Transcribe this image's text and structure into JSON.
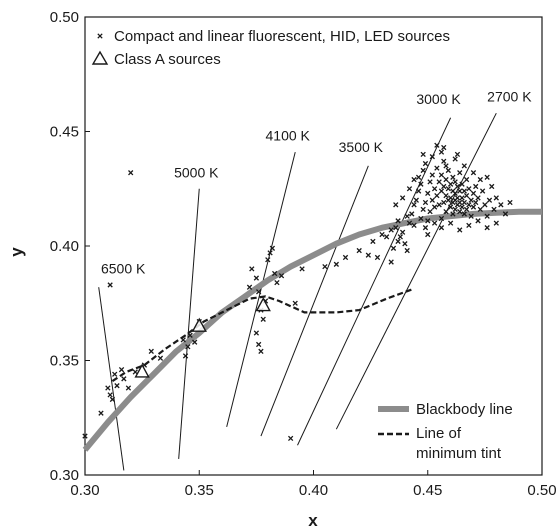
{
  "chart_data": {
    "type": "scatter",
    "title": "",
    "xlabel": "x",
    "ylabel": "y",
    "xlim": [
      0.3,
      0.5
    ],
    "ylim": [
      0.3,
      0.5
    ],
    "x_ticks": [
      "0.30",
      "0.35",
      "0.40",
      "0.45",
      "0.50"
    ],
    "y_ticks": [
      "0.30",
      "0.35",
      "0.40",
      "0.45",
      "0.50"
    ],
    "x_tick_values": [
      0.3,
      0.35,
      0.4,
      0.45,
      0.5
    ],
    "y_tick_values": [
      0.3,
      0.35,
      0.4,
      0.45,
      0.5
    ],
    "grid": false,
    "legend_top": [
      {
        "marker": "x",
        "label": "Compact and linear fluorescent, HID, LED sources"
      },
      {
        "marker": "triangle",
        "label": "Class A sources"
      }
    ],
    "legend_bottom": [
      {
        "style": "solid-thick-gray",
        "label": "Blackbody line"
      },
      {
        "style": "dashed-black",
        "label": "Line of minimum tint",
        "label_lines": [
          "Line of",
          "minimum tint"
        ]
      }
    ],
    "colors": {
      "blackbody": "#8c8c8c",
      "ink": "#1a1a1a"
    },
    "blackbody": [
      [
        0.3,
        0.311
      ],
      [
        0.31,
        0.323
      ],
      [
        0.32,
        0.334
      ],
      [
        0.33,
        0.344
      ],
      [
        0.34,
        0.354
      ],
      [
        0.35,
        0.362
      ],
      [
        0.36,
        0.371
      ],
      [
        0.37,
        0.378
      ],
      [
        0.38,
        0.385
      ],
      [
        0.39,
        0.391
      ],
      [
        0.4,
        0.396
      ],
      [
        0.41,
        0.401
      ],
      [
        0.42,
        0.405
      ],
      [
        0.43,
        0.408
      ],
      [
        0.44,
        0.41
      ],
      [
        0.45,
        0.412
      ],
      [
        0.46,
        0.413
      ],
      [
        0.47,
        0.414
      ],
      [
        0.48,
        0.4145
      ],
      [
        0.49,
        0.415
      ],
      [
        0.5,
        0.415
      ]
    ],
    "min_tint": [
      [
        0.312,
        0.341
      ],
      [
        0.318,
        0.345
      ],
      [
        0.326,
        0.348
      ],
      [
        0.335,
        0.355
      ],
      [
        0.344,
        0.361
      ],
      [
        0.352,
        0.367
      ],
      [
        0.362,
        0.372
      ],
      [
        0.372,
        0.377
      ],
      [
        0.379,
        0.378
      ],
      [
        0.385,
        0.376
      ],
      [
        0.396,
        0.371
      ],
      [
        0.41,
        0.371
      ],
      [
        0.42,
        0.372
      ],
      [
        0.432,
        0.377
      ],
      [
        0.443,
        0.381
      ]
    ],
    "cct_lines": [
      {
        "label": "6500 K",
        "from": [
          0.317,
          0.302
        ],
        "to": [
          0.306,
          0.382
        ],
        "label_at": [
          0.307,
          0.388
        ]
      },
      {
        "label": "5000 K",
        "from": [
          0.341,
          0.307
        ],
        "to": [
          0.35,
          0.425
        ],
        "label_at": [
          0.339,
          0.43
        ]
      },
      {
        "label": "4100 K",
        "from": [
          0.362,
          0.321
        ],
        "to": [
          0.392,
          0.441
        ],
        "label_at": [
          0.379,
          0.446
        ]
      },
      {
        "label": "3500 K",
        "from": [
          0.377,
          0.317
        ],
        "to": [
          0.424,
          0.435
        ],
        "label_at": [
          0.411,
          0.441
        ]
      },
      {
        "label": "3000 K",
        "from": [
          0.393,
          0.313
        ],
        "to": [
          0.46,
          0.456
        ],
        "label_at": [
          0.445,
          0.462
        ]
      },
      {
        "label": "2700 K",
        "from": [
          0.41,
          0.32
        ],
        "to": [
          0.48,
          0.458
        ],
        "label_at": [
          0.476,
          0.463
        ]
      }
    ],
    "class_a": [
      [
        0.325,
        0.345
      ],
      [
        0.35,
        0.365
      ],
      [
        0.378,
        0.374
      ]
    ],
    "sources": [
      [
        0.32,
        0.432
      ],
      [
        0.311,
        0.383
      ],
      [
        0.307,
        0.327
      ],
      [
        0.3,
        0.317
      ],
      [
        0.31,
        0.338
      ],
      [
        0.311,
        0.335
      ],
      [
        0.312,
        0.333
      ],
      [
        0.313,
        0.344
      ],
      [
        0.314,
        0.339
      ],
      [
        0.316,
        0.346
      ],
      [
        0.317,
        0.342
      ],
      [
        0.319,
        0.338
      ],
      [
        0.322,
        0.345
      ],
      [
        0.326,
        0.348
      ],
      [
        0.329,
        0.354
      ],
      [
        0.333,
        0.351
      ],
      [
        0.343,
        0.359
      ],
      [
        0.344,
        0.352
      ],
      [
        0.345,
        0.356
      ],
      [
        0.346,
        0.361
      ],
      [
        0.348,
        0.358
      ],
      [
        0.35,
        0.367
      ],
      [
        0.372,
        0.382
      ],
      [
        0.373,
        0.39
      ],
      [
        0.375,
        0.386
      ],
      [
        0.376,
        0.38
      ],
      [
        0.377,
        0.372
      ],
      [
        0.378,
        0.368
      ],
      [
        0.379,
        0.376
      ],
      [
        0.38,
        0.394
      ],
      [
        0.381,
        0.397
      ],
      [
        0.382,
        0.399
      ],
      [
        0.383,
        0.388
      ],
      [
        0.384,
        0.384
      ],
      [
        0.386,
        0.387
      ],
      [
        0.375,
        0.362
      ],
      [
        0.376,
        0.357
      ],
      [
        0.377,
        0.354
      ],
      [
        0.39,
        0.316
      ],
      [
        0.392,
        0.375
      ],
      [
        0.395,
        0.39
      ],
      [
        0.405,
        0.391
      ],
      [
        0.41,
        0.392
      ],
      [
        0.414,
        0.395
      ],
      [
        0.42,
        0.398
      ],
      [
        0.424,
        0.396
      ],
      [
        0.426,
        0.402
      ],
      [
        0.43,
        0.405
      ],
      [
        0.432,
        0.404
      ],
      [
        0.434,
        0.407
      ],
      [
        0.436,
        0.408
      ],
      [
        0.437,
        0.402
      ],
      [
        0.438,
        0.404
      ],
      [
        0.439,
        0.406
      ],
      [
        0.44,
        0.401
      ],
      [
        0.441,
        0.398
      ],
      [
        0.442,
        0.41
      ],
      [
        0.443,
        0.414
      ],
      [
        0.444,
        0.418
      ],
      [
        0.445,
        0.42
      ],
      [
        0.446,
        0.424
      ],
      [
        0.446,
        0.43
      ],
      [
        0.447,
        0.412
      ],
      [
        0.447,
        0.427
      ],
      [
        0.448,
        0.416
      ],
      [
        0.448,
        0.433
      ],
      [
        0.449,
        0.419
      ],
      [
        0.449,
        0.436
      ],
      [
        0.45,
        0.423
      ],
      [
        0.45,
        0.411
      ],
      [
        0.451,
        0.428
      ],
      [
        0.451,
        0.415
      ],
      [
        0.452,
        0.42
      ],
      [
        0.452,
        0.431
      ],
      [
        0.453,
        0.417
      ],
      [
        0.453,
        0.425
      ],
      [
        0.454,
        0.422
      ],
      [
        0.454,
        0.434
      ],
      [
        0.455,
        0.418
      ],
      [
        0.455,
        0.428
      ],
      [
        0.456,
        0.412
      ],
      [
        0.456,
        0.424
      ],
      [
        0.456,
        0.431
      ],
      [
        0.457,
        0.419
      ],
      [
        0.457,
        0.426
      ],
      [
        0.457,
        0.437
      ],
      [
        0.458,
        0.415
      ],
      [
        0.458,
        0.422
      ],
      [
        0.458,
        0.429
      ],
      [
        0.459,
        0.42
      ],
      [
        0.459,
        0.425
      ],
      [
        0.459,
        0.433
      ],
      [
        0.46,
        0.417
      ],
      [
        0.46,
        0.421
      ],
      [
        0.46,
        0.427
      ],
      [
        0.461,
        0.414
      ],
      [
        0.461,
        0.419
      ],
      [
        0.461,
        0.424
      ],
      [
        0.461,
        0.43
      ],
      [
        0.462,
        0.416
      ],
      [
        0.462,
        0.42
      ],
      [
        0.462,
        0.423
      ],
      [
        0.462,
        0.428
      ],
      [
        0.463,
        0.418
      ],
      [
        0.463,
        0.421
      ],
      [
        0.463,
        0.426
      ],
      [
        0.464,
        0.415
      ],
      [
        0.464,
        0.419
      ],
      [
        0.464,
        0.424
      ],
      [
        0.464,
        0.432
      ],
      [
        0.465,
        0.417
      ],
      [
        0.465,
        0.421
      ],
      [
        0.465,
        0.427
      ],
      [
        0.466,
        0.414
      ],
      [
        0.466,
        0.419
      ],
      [
        0.466,
        0.424
      ],
      [
        0.467,
        0.416
      ],
      [
        0.467,
        0.422
      ],
      [
        0.467,
        0.429
      ],
      [
        0.468,
        0.418
      ],
      [
        0.468,
        0.425
      ],
      [
        0.469,
        0.42
      ],
      [
        0.469,
        0.413
      ],
      [
        0.47,
        0.423
      ],
      [
        0.47,
        0.417
      ],
      [
        0.471,
        0.426
      ],
      [
        0.471,
        0.419
      ],
      [
        0.472,
        0.421
      ],
      [
        0.473,
        0.416
      ],
      [
        0.474,
        0.424
      ],
      [
        0.475,
        0.418
      ],
      [
        0.476,
        0.413
      ],
      [
        0.477,
        0.42
      ],
      [
        0.478,
        0.426
      ],
      [
        0.479,
        0.416
      ],
      [
        0.48,
        0.421
      ],
      [
        0.482,
        0.418
      ],
      [
        0.484,
        0.414
      ],
      [
        0.486,
        0.419
      ],
      [
        0.453,
        0.41
      ],
      [
        0.449,
        0.408
      ],
      [
        0.444,
        0.409
      ],
      [
        0.441,
        0.413
      ],
      [
        0.437,
        0.411
      ],
      [
        0.435,
        0.399
      ],
      [
        0.448,
        0.44
      ],
      [
        0.452,
        0.439
      ],
      [
        0.456,
        0.441
      ],
      [
        0.454,
        0.444
      ],
      [
        0.462,
        0.438
      ],
      [
        0.466,
        0.435
      ],
      [
        0.47,
        0.432
      ],
      [
        0.473,
        0.429
      ],
      [
        0.476,
        0.43
      ],
      [
        0.458,
        0.435
      ],
      [
        0.45,
        0.405
      ],
      [
        0.456,
        0.408
      ],
      [
        0.46,
        0.41
      ],
      [
        0.464,
        0.407
      ],
      [
        0.468,
        0.409
      ],
      [
        0.472,
        0.411
      ],
      [
        0.476,
        0.408
      ],
      [
        0.48,
        0.41
      ],
      [
        0.436,
        0.418
      ],
      [
        0.439,
        0.421
      ],
      [
        0.442,
        0.425
      ],
      [
        0.444,
        0.429
      ],
      [
        0.428,
        0.395
      ],
      [
        0.434,
        0.393
      ],
      [
        0.463,
        0.44
      ],
      [
        0.457,
        0.443
      ]
    ]
  }
}
